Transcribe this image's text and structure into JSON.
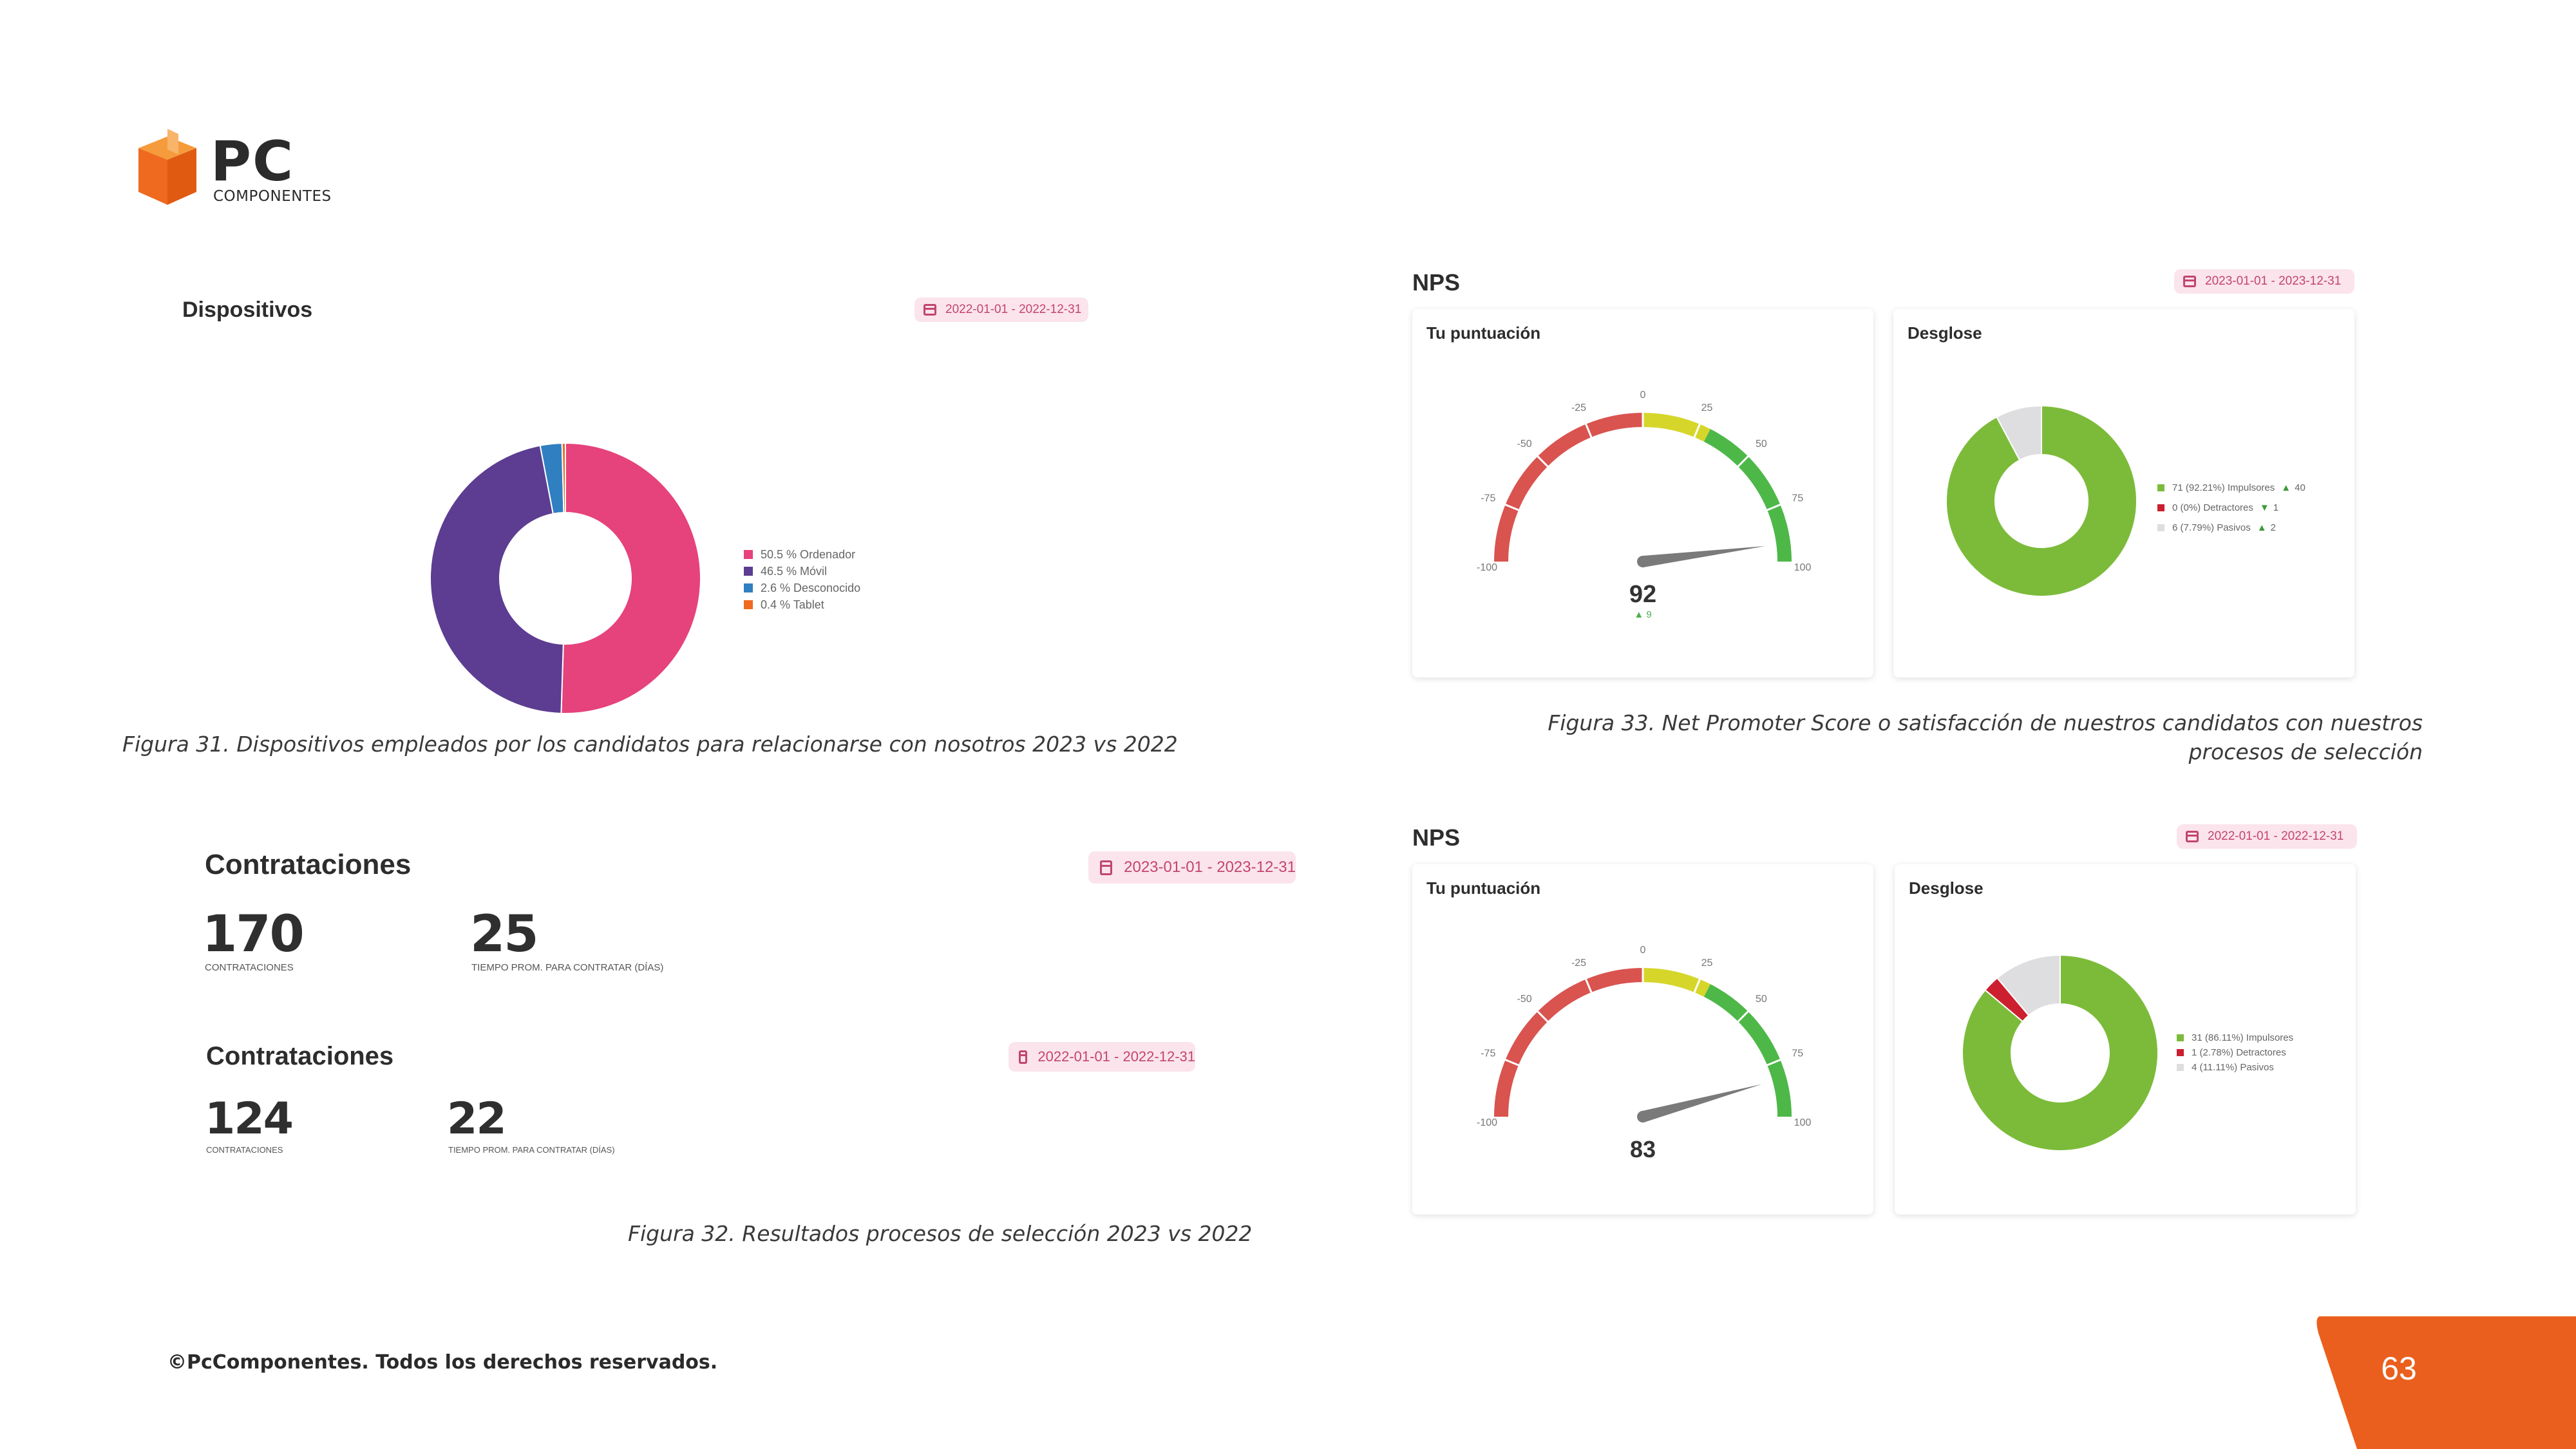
{
  "logo": {
    "brand": "PC",
    "subtitle": "COMPONENTES"
  },
  "dispositivos": {
    "title": "Dispositivos",
    "date_range": "2022-01-01 - 2022-12-31",
    "legend": [
      {
        "label": "50.5 % Ordenador",
        "color": "#e6427c"
      },
      {
        "label": "46.5 % Móvil",
        "color": "#5c3d91"
      },
      {
        "label": "2.6 % Desconocido",
        "color": "#2f7fc1"
      },
      {
        "label": "0.4 % Tablet",
        "color": "#ef6a1f"
      }
    ],
    "caption": "Figura 31. Dispositivos empleados por los candidatos para relacionarse con nosotros 2023 vs 2022"
  },
  "contrataciones_2023": {
    "title": "Contrataciones",
    "date_range": "2023-01-01 - 2023-12-31",
    "hires_value": "170",
    "hires_label": "CONTRATACIONES",
    "avg_value": "25",
    "avg_label": "TIEMPO PROM. PARA CONTRATAR (DÍAS)"
  },
  "contrataciones_2022": {
    "title": "Contrataciones",
    "date_range": "2022-01-01 - 2022-12-31",
    "hires_value": "124",
    "hires_label": "CONTRATACIONES",
    "avg_value": "22",
    "avg_label": "TIEMPO PROM. PARA CONTRATAR (DÍAS)"
  },
  "caption_32": "Figura 32. Resultados procesos de selección 2023 vs 2022",
  "nps_2023": {
    "title": "NPS",
    "date_range": "2023-01-01 - 2023-12-31",
    "score_title": "Tu puntuación",
    "score": "92",
    "delta": "9",
    "breakdown_title": "Desglose",
    "legend": [
      {
        "label": "71 (92.21%) Impulsores",
        "color": "#7cbb3a",
        "trend": "up",
        "delta": "40"
      },
      {
        "label": "0 (0%) Detractores",
        "color": "#cc1f2f",
        "trend": "down",
        "delta": "1"
      },
      {
        "label": "6 (7.79%) Pasivos",
        "color": "#dedee0",
        "trend": "up",
        "delta": "2"
      }
    ]
  },
  "caption_33": "Figura 33. Net Promoter Score o satisfacción de nuestros candidatos con nuestros procesos de selección",
  "nps_2022": {
    "title": "NPS",
    "date_range": "2022-01-01 - 2022-12-31",
    "score_title": "Tu puntuación",
    "score": "83",
    "breakdown_title": "Desglose",
    "legend": [
      {
        "label": "31 (86.11%) Impulsores",
        "color": "#7cbb3a"
      },
      {
        "label": "1 (2.78%) Detractores",
        "color": "#cc1f2f"
      },
      {
        "label": "4 (11.11%) Pasivos",
        "color": "#dedee0"
      }
    ]
  },
  "gauge_ticks": [
    "-100",
    "-75",
    "-50",
    "-25",
    "0",
    "25",
    "50",
    "75",
    "100"
  ],
  "footer": {
    "copyright": "©PcComponentes. Todos los derechos reservados.",
    "page_number": "63"
  },
  "colors": {
    "orange": "#ef6a1f",
    "pink": "#e6427c",
    "purple": "#5c3d91",
    "green": "#7cbb3a",
    "red": "#d9534f",
    "yellow": "#d6d62a"
  },
  "chart_data": [
    {
      "type": "pie",
      "title": "Dispositivos",
      "categories": [
        "Ordenador",
        "Móvil",
        "Desconocido",
        "Tablet"
      ],
      "values": [
        50.5,
        46.5,
        2.6,
        0.4
      ],
      "colors": [
        "#e6427c",
        "#5c3d91",
        "#2f7fc1",
        "#ef6a1f"
      ],
      "legend": "right"
    },
    {
      "type": "pie",
      "title": "Desglose",
      "categories": [
        "Impulsores",
        "Detractores",
        "Pasivos"
      ],
      "values": [
        92.21,
        0,
        7.79
      ],
      "colors": [
        "#7cbb3a",
        "#cc1f2f",
        "#dedee0"
      ],
      "legend": "right"
    },
    {
      "type": "pie",
      "title": "Desglose",
      "categories": [
        "Impulsores",
        "Detractores",
        "Pasivos"
      ],
      "values": [
        86.11,
        2.78,
        11.11
      ],
      "colors": [
        "#7cbb3a",
        "#cc1f2f",
        "#dedee0"
      ],
      "legend": "right"
    }
  ]
}
